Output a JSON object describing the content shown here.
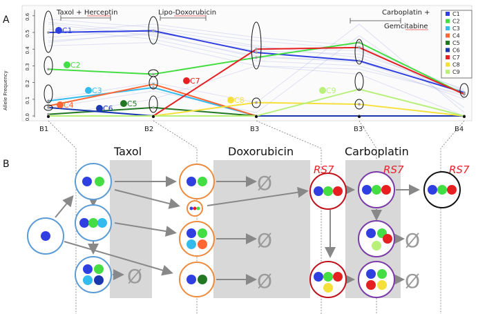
{
  "panel_labels": {
    "a": "A",
    "b": "B"
  },
  "treatments_top": [
    "Taxol + Herceptin",
    "Lipo-Doxorubicin",
    "Carboplatin +",
    "Gemcitabine"
  ],
  "treatments_bottom": [
    "Taxol",
    "Doxorubicin",
    "Carboplatin"
  ],
  "empty_symbol": "Ø",
  "resistance_label": "RS7",
  "colors": {
    "C1": "#2f3fe0",
    "C2": "#44dd44",
    "C3": "#33bbee",
    "C4": "#ff6633",
    "C5": "#227722",
    "C6": "#1a37b0",
    "C7": "#e62020",
    "C8": "#f5e03a",
    "C9": "#b8f07a",
    "blue_circle": "#5b9bd5",
    "orange_circle": "#ee8a3c",
    "red_circle": "#c0101a",
    "purple_circle": "#7a3aa8",
    "gray_band": "#d7d7d7"
  },
  "chart_data": {
    "type": "line",
    "ylabel": "Allele Frequency",
    "categories": [
      "B1",
      "B2",
      "B3",
      "B3'",
      "B4"
    ],
    "y_ticks": [
      "0.0",
      "0.1",
      "0.2",
      "0.3",
      "0.4",
      "0.5",
      "0.6"
    ],
    "ylim": [
      0,
      0.62
    ],
    "legend": [
      "C1",
      "C2",
      "C3",
      "C4",
      "C5",
      "C6",
      "C7",
      "C8",
      "C9"
    ],
    "legend_position": "top-right",
    "series": [
      {
        "name": "C1",
        "values": [
          0.5,
          0.51,
          0.38,
          0.33,
          0.14
        ]
      },
      {
        "name": "C2",
        "values": [
          0.28,
          0.25,
          0.35,
          0.44,
          0.13
        ]
      },
      {
        "name": "C3",
        "values": [
          0.09,
          0.17,
          0.0,
          0.0,
          0.0
        ]
      },
      {
        "name": "C4",
        "values": [
          0.06,
          0.19,
          0.0,
          0.0,
          0.0
        ]
      },
      {
        "name": "C5",
        "values": [
          0.01,
          0.05,
          0.0,
          0.0,
          0.0
        ]
      },
      {
        "name": "C6",
        "values": [
          0.05,
          0.0,
          0.0,
          0.0,
          0.0
        ]
      },
      {
        "name": "C7",
        "values": [
          0.0,
          0.0,
          0.4,
          0.41,
          0.13
        ]
      },
      {
        "name": "C8",
        "values": [
          0.0,
          0.0,
          0.08,
          0.07,
          0.0
        ]
      },
      {
        "name": "C9",
        "values": [
          0.0,
          0.0,
          0.0,
          0.16,
          0.0
        ]
      }
    ]
  }
}
